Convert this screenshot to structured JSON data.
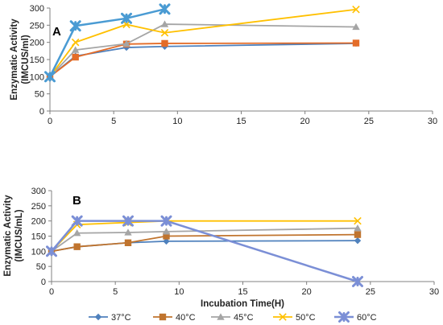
{
  "chart_data": [
    {
      "type": "line",
      "panel_label": "A",
      "ylabel_lines": [
        "Enzymatic  Activity",
        "(IMCUS/ml)"
      ],
      "xlabel": "",
      "xlim": [
        0,
        30
      ],
      "ylim": [
        0,
        300
      ],
      "x_ticks": [
        0,
        5,
        10,
        15,
        20,
        25,
        30
      ],
      "y_ticks": [
        0,
        50,
        100,
        150,
        200,
        250,
        300
      ],
      "grid": false,
      "series": [
        {
          "name": "37°C",
          "color": "#4f81bd",
          "marker": "diamond",
          "x": [
            0,
            2,
            6,
            9,
            24
          ],
          "y": [
            100,
            160,
            185,
            188,
            197
          ]
        },
        {
          "name": "40°C",
          "color": "#e46c28",
          "marker": "square",
          "x": [
            0,
            2,
            6,
            9,
            24
          ],
          "y": [
            100,
            157,
            195,
            197,
            198
          ]
        },
        {
          "name": "45°C",
          "color": "#a5a5a5",
          "marker": "triangle",
          "x": [
            0,
            2,
            6,
            9,
            24
          ],
          "y": [
            100,
            178,
            196,
            253,
            245
          ]
        },
        {
          "name": "50°C",
          "color": "#ffc000",
          "marker": "x",
          "x": [
            0,
            2,
            6,
            9,
            24
          ],
          "y": [
            100,
            200,
            252,
            228,
            296
          ]
        },
        {
          "name": "60°C",
          "color": "#4a9bd3",
          "marker": "star",
          "x": [
            0,
            2,
            6,
            9
          ],
          "y": [
            100,
            248,
            270,
            297
          ]
        }
      ]
    },
    {
      "type": "line",
      "panel_label": "B",
      "ylabel_lines": [
        "Enzymatic Activity",
        "(IMCUS/mL)"
      ],
      "xlabel": "Incubation  Time(H)",
      "xlim": [
        0,
        30
      ],
      "ylim": [
        0,
        300
      ],
      "x_ticks": [
        0,
        5,
        10,
        15,
        20,
        25,
        30
      ],
      "y_ticks": [
        0,
        50,
        100,
        150,
        200,
        250,
        300
      ],
      "grid": false,
      "legend_position": "bottom",
      "series": [
        {
          "name": "37°C",
          "color": "#4f81bd",
          "marker": "diamond",
          "x": [
            0,
            2,
            6,
            9,
            24
          ],
          "y": [
            100,
            115,
            128,
            133,
            135
          ]
        },
        {
          "name": "40°C",
          "color": "#c0742e",
          "marker": "square",
          "x": [
            0,
            2,
            6,
            9,
            24
          ],
          "y": [
            100,
            115,
            128,
            150,
            155
          ]
        },
        {
          "name": "45°C",
          "color": "#a5a5a5",
          "marker": "triangle",
          "x": [
            0,
            2,
            6,
            9,
            24
          ],
          "y": [
            100,
            160,
            162,
            165,
            176
          ]
        },
        {
          "name": "50°C",
          "color": "#ffc000",
          "marker": "x",
          "x": [
            0,
            2,
            6,
            9,
            24
          ],
          "y": [
            100,
            188,
            195,
            200,
            200
          ]
        },
        {
          "name": "60°C",
          "color": "#7b8fd6",
          "marker": "star",
          "x": [
            0,
            2,
            6,
            9,
            24
          ],
          "y": [
            100,
            200,
            200,
            200,
            0
          ]
        }
      ]
    }
  ],
  "legend": {
    "items": [
      {
        "label": "37°C",
        "color": "#4f81bd",
        "marker": "diamond"
      },
      {
        "label": "40°C",
        "color": "#c0742e",
        "marker": "square"
      },
      {
        "label": "45°C",
        "color": "#a5a5a5",
        "marker": "triangle"
      },
      {
        "label": "50°C",
        "color": "#ffc000",
        "marker": "x"
      },
      {
        "label": "60°C",
        "color": "#7b8fd6",
        "marker": "star"
      }
    ]
  }
}
